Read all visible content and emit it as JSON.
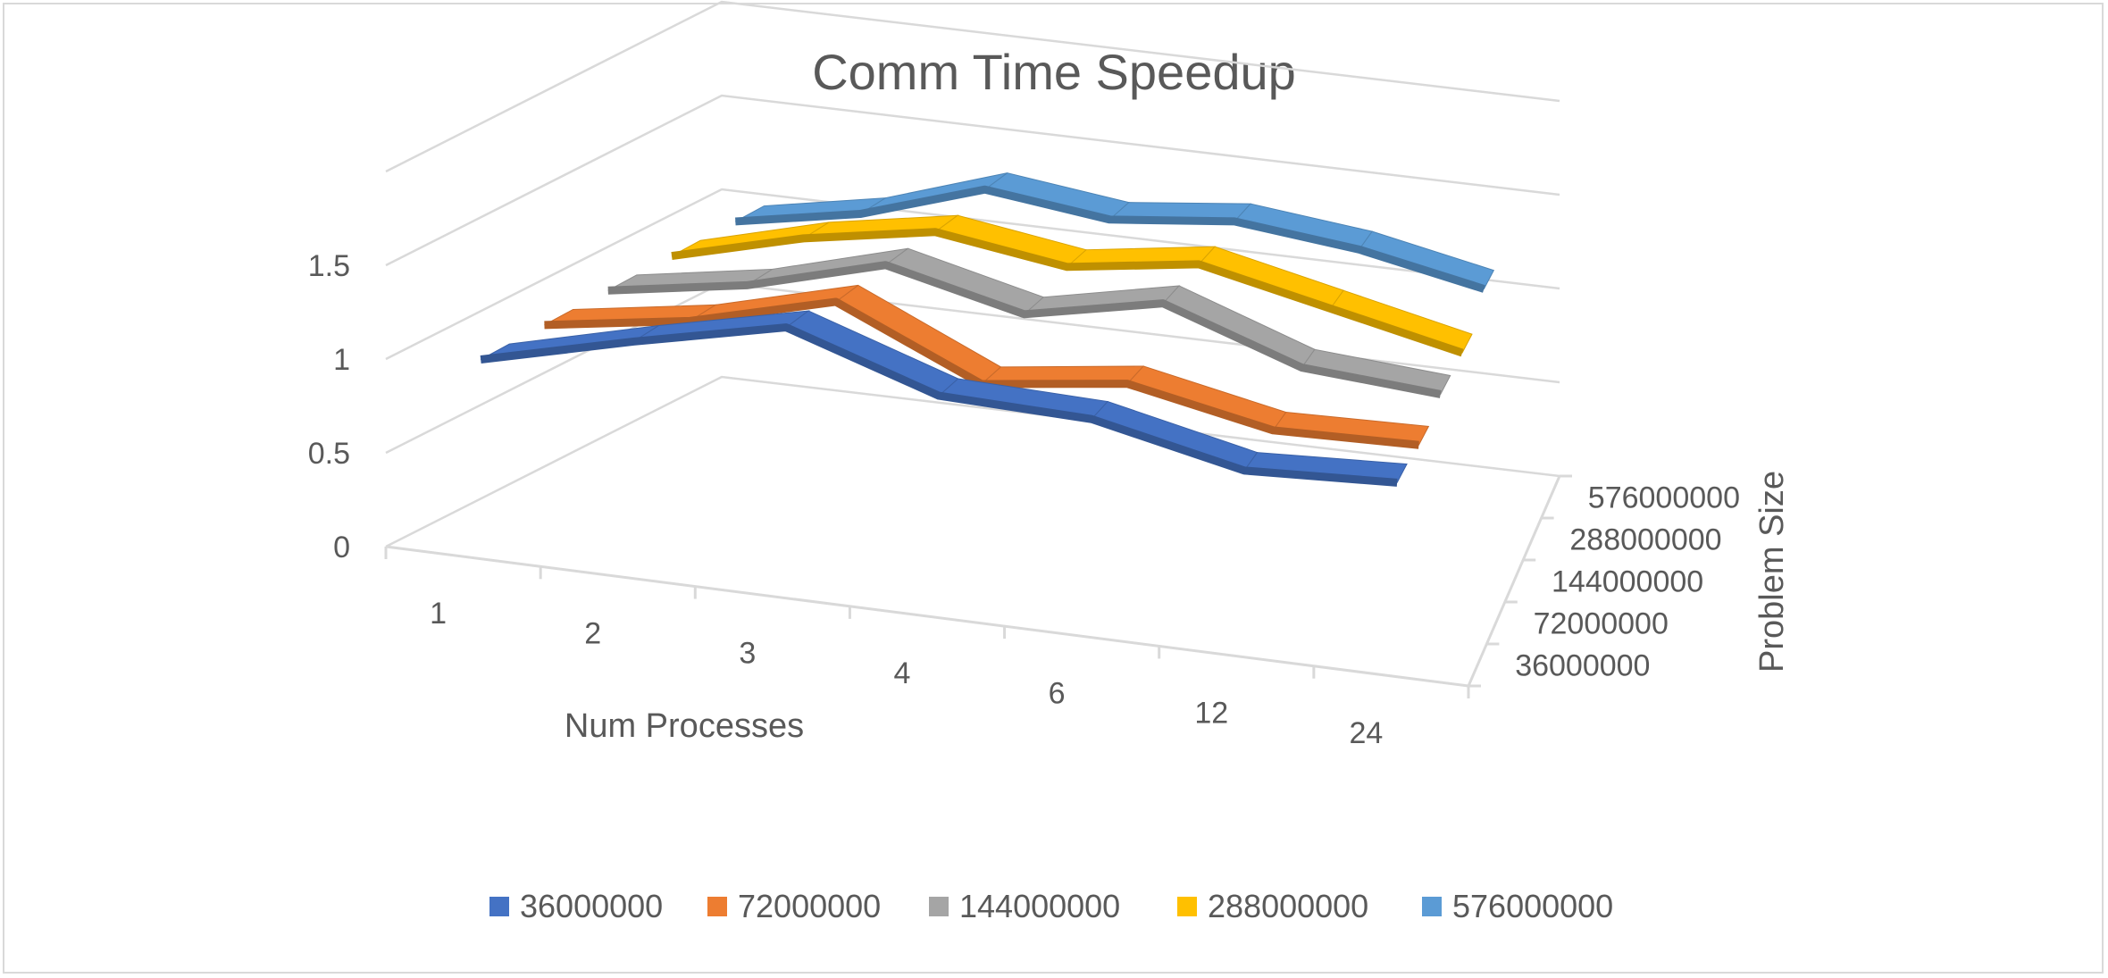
{
  "chart_data": {
    "type": "line",
    "subtype": "3d-line",
    "title": "Comm Time Speedup",
    "xlabel": "Num Processes",
    "zlabel": "Problem Size",
    "categories": [
      "1",
      "2",
      "3",
      "4",
      "6",
      "12",
      "24"
    ],
    "y_ticks": [
      "0",
      "0.5",
      "1",
      "1.5"
    ],
    "ylim": [
      0,
      1.5
    ],
    "depth_ticks": [
      "36000000",
      "72000000",
      "144000000",
      "288000000",
      "576000000"
    ],
    "grid": true,
    "legend_position": "bottom",
    "series": [
      {
        "name": "36000000",
        "color": "#4472C4",
        "values": [
          1.0,
          1.2,
          1.38,
          1.12,
          1.1,
          0.93,
          0.97
        ]
      },
      {
        "name": "72000000",
        "color": "#ED7D31",
        "values": [
          1.0,
          1.12,
          1.32,
          0.98,
          1.08,
          0.93,
          0.95
        ]
      },
      {
        "name": "144000000",
        "color": "#A5A5A5",
        "values": [
          1.0,
          1.12,
          1.32,
          1.15,
          1.3,
          1.05,
          1.0
        ]
      },
      {
        "name": "288000000",
        "color": "#FFC000",
        "values": [
          1.0,
          1.18,
          1.3,
          1.2,
          1.3,
          1.15,
          1.0
        ]
      },
      {
        "name": "576000000",
        "color": "#5B9BD5",
        "values": [
          1.0,
          1.12,
          1.33,
          1.25,
          1.32,
          1.25,
          1.12
        ]
      }
    ]
  }
}
